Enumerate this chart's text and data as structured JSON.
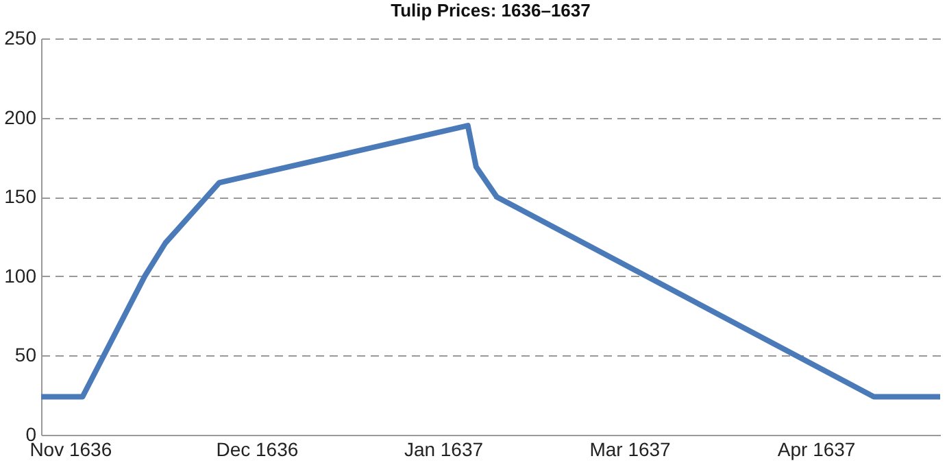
{
  "chart_data": {
    "type": "line",
    "title": "Tulip Prices: 1636–1637",
    "x": [
      "1636-10-25",
      "1636-11-04",
      "1636-11-19",
      "1636-11-24",
      "1636-12-07",
      "1637-02-05",
      "1637-02-07",
      "1637-02-12",
      "1637-05-14",
      "1637-05-30"
    ],
    "series": [
      {
        "color": "#4a7ab8",
        "values": [
          24,
          24,
          100,
          121,
          159,
          195,
          169,
          150,
          24,
          24
        ]
      }
    ],
    "xlim": [
      "1636-10-25",
      "1637-05-30"
    ],
    "xticks": [
      {
        "value": "1636-11-01",
        "label": "Nov 1636"
      },
      {
        "value": "1636-12-16",
        "label": "Dec 1636"
      },
      {
        "value": "1637-01-30",
        "label": "Jan 1637"
      },
      {
        "value": "1637-03-16",
        "label": "Mar 1637"
      },
      {
        "value": "1637-04-30",
        "label": "Apr 1637"
      }
    ],
    "ylim": [
      0,
      250
    ],
    "yticks": [
      0,
      50,
      100,
      150,
      200,
      250
    ],
    "grid": "y",
    "legend": false,
    "marker": "none",
    "line_style": "solid"
  }
}
